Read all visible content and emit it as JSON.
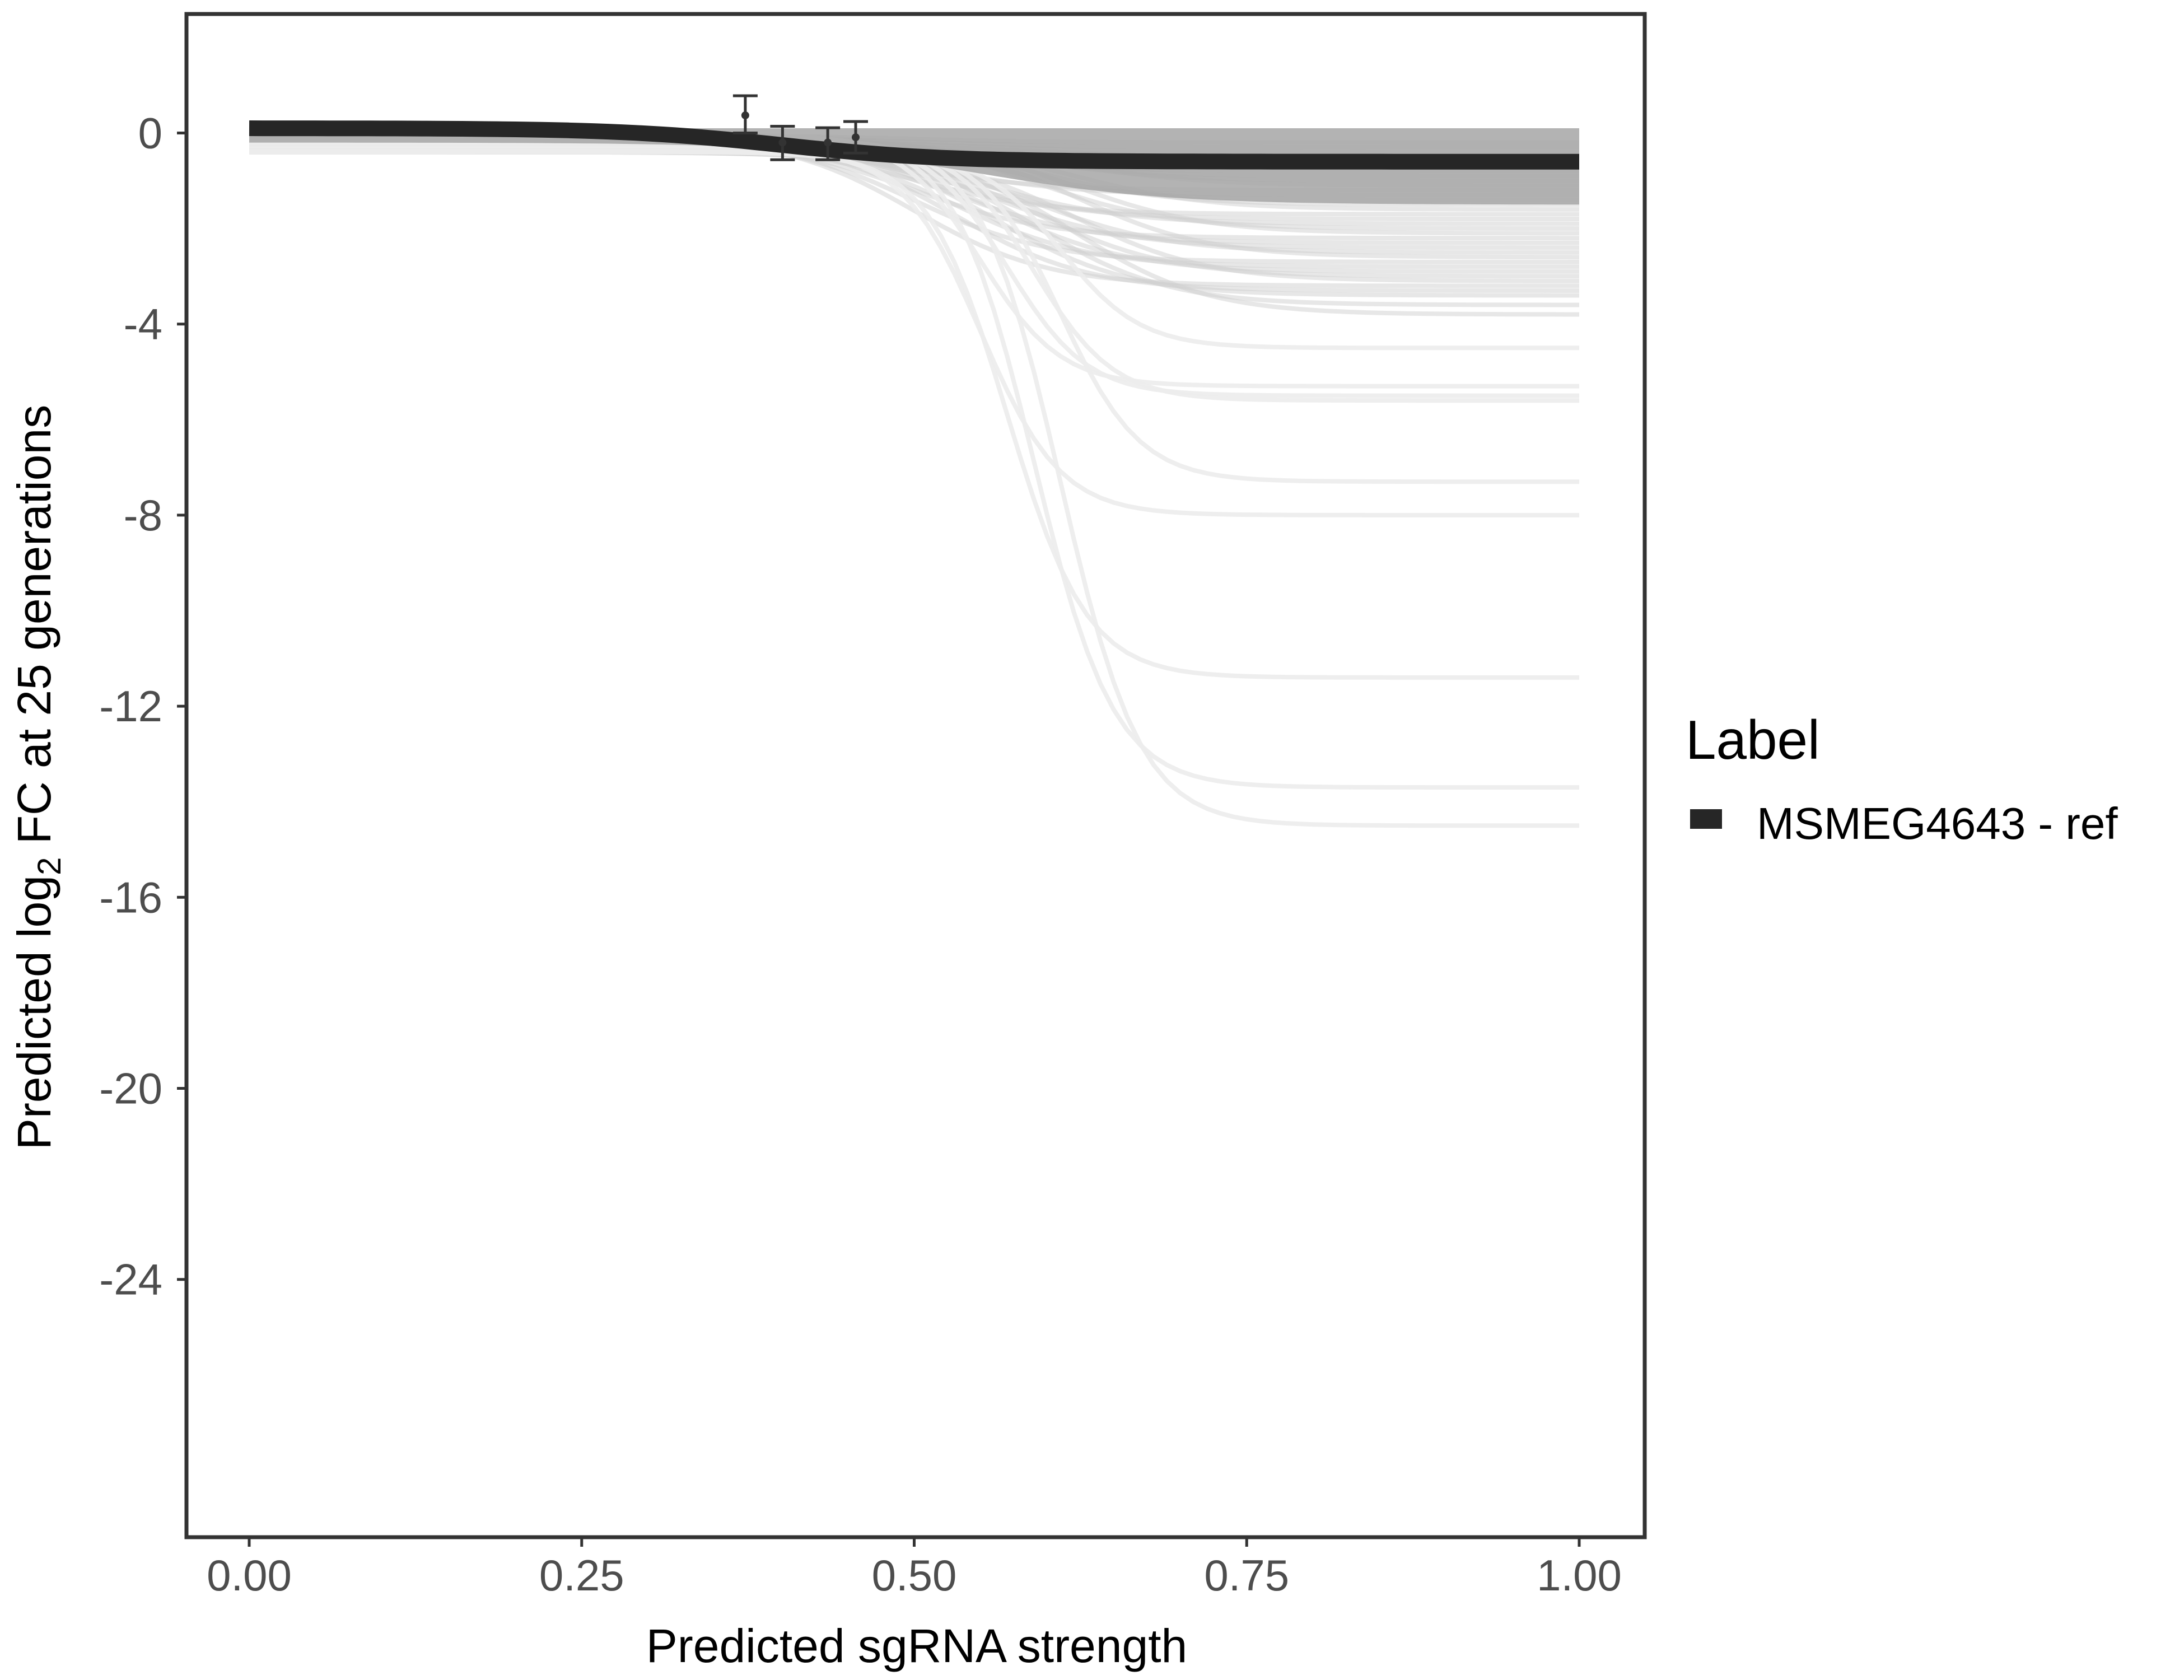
{
  "chart_data": {
    "type": "line",
    "xlabel": "Predicted sgRNA strength",
    "ylabel_parts": {
      "pre": "Predicted  log",
      "sub": "2",
      "post": " FC at 25 generations"
    },
    "xlim": [
      -0.02,
      1.02
    ],
    "ylim": [
      -29.4,
      2.5
    ],
    "x_ticks": [
      0,
      0.25,
      0.5,
      0.75,
      1
    ],
    "x_tick_labels": [
      "0.00",
      "0.25",
      "0.50",
      "0.75",
      "1.00"
    ],
    "y_ticks": [
      0,
      -4,
      -8,
      -12,
      -16,
      -20,
      -24
    ],
    "y_tick_labels": [
      "0",
      "-4",
      "-8",
      "-12",
      "-16",
      "-20",
      "-24"
    ],
    "grid": false,
    "legend": {
      "title": "Label",
      "placement": "right",
      "entries": [
        {
          "label": "MSMEG4643 - ref",
          "color": "#262626"
        }
      ]
    },
    "highlight_curve": {
      "name": "MSMEG4643 - ref",
      "start": 0.1,
      "end": -0.6,
      "midpoint": 0.4,
      "scale": 0.06,
      "color": "#262626"
    },
    "background_curve_band": {
      "upper": 0.1,
      "lower": -1.5,
      "color": "#a6a6a6"
    },
    "background_curves_end_values": [
      -0.2,
      -0.3,
      -0.4,
      -0.5,
      -0.6,
      -0.7,
      -0.8,
      -0.9,
      -1.0,
      -1.1,
      -1.2,
      -1.3,
      -1.4,
      -1.5,
      -1.6,
      -1.7,
      -1.8,
      -1.9,
      -2.0,
      -2.1,
      -2.2,
      -2.3,
      -2.4,
      -2.5,
      -2.6,
      -2.7,
      -2.8,
      -2.9,
      -3.0,
      -3.1,
      -3.2,
      -3.3,
      -3.4,
      -3.6,
      -3.8,
      -4.5,
      -5.3,
      -5.5,
      -5.6,
      -7.3,
      -8.0,
      -11.4,
      -13.7,
      -14.5
    ],
    "points": [
      {
        "x": 0.373,
        "y": 0.37,
        "ymin": -0.0,
        "ymax": 0.78
      },
      {
        "x": 0.401,
        "y": -0.2,
        "ymin": -0.56,
        "ymax": 0.14
      },
      {
        "x": 0.435,
        "y": -0.2,
        "ymin": -0.56,
        "ymax": 0.11
      },
      {
        "x": 0.456,
        "y": -0.09,
        "ymin": -0.42,
        "ymax": 0.24
      }
    ]
  }
}
